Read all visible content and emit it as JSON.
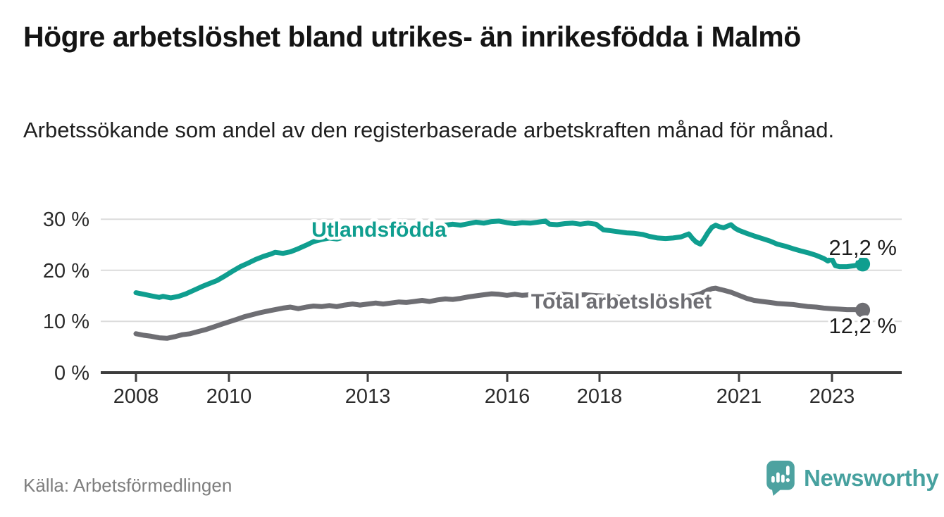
{
  "header": {
    "title": "Högre arbetslöshet bland utrikes- än inrikesfödda i Malmö",
    "subtitle": "Arbetssökande som andel av den registerbaserade arbetskraften månad för månad."
  },
  "footer": {
    "source": "Källa: Arbetsförmedlingen",
    "brand": "Newsworthy",
    "logo_icon": "bar-chart-speech-bubble-icon"
  },
  "colors": {
    "series_foreign_born": "#0f9e8f",
    "series_total": "#6e6e73",
    "brand_teal": "#47a19f",
    "axis": "#3d3d3d",
    "gridline": "#dcdcdc",
    "value_label": "#1c1c1c",
    "source_text": "#7e7e7e"
  },
  "chart_data": {
    "type": "line",
    "title": "Högre arbetslöshet bland utrikes- än inrikesfödda i Malmö",
    "subtitle": "Arbetssökande som andel av den registerbaserade arbetskraften månad för månad.",
    "xlabel": "",
    "ylabel": "",
    "grid": "horizontal",
    "legend_position": "inline-labels",
    "xlim": [
      2007.25,
      2024.2
    ],
    "ylim": [
      0,
      32
    ],
    "x_ticks": [
      2008,
      2010,
      2013,
      2016,
      2018,
      2021,
      2023
    ],
    "x_tick_labels": [
      "2008",
      "2010",
      "2013",
      "2016",
      "2018",
      "2021",
      "2023"
    ],
    "y_ticks": [
      0,
      10,
      20,
      30
    ],
    "y_tick_labels": [
      "0 %",
      "10 %",
      "20 %",
      "30 %"
    ],
    "series": [
      {
        "name": "Utlandsfödda",
        "color": "#0f9e8f",
        "end_label": "21,2 %",
        "end_value": 21.2,
        "points": [
          [
            2008.0,
            15.6
          ],
          [
            2008.17,
            15.3
          ],
          [
            2008.33,
            15.0
          ],
          [
            2008.5,
            14.7
          ],
          [
            2008.58,
            14.9
          ],
          [
            2008.75,
            14.6
          ],
          [
            2008.92,
            14.9
          ],
          [
            2009.08,
            15.4
          ],
          [
            2009.25,
            16.1
          ],
          [
            2009.42,
            16.8
          ],
          [
            2009.58,
            17.4
          ],
          [
            2009.75,
            18.0
          ],
          [
            2009.92,
            18.9
          ],
          [
            2010.08,
            19.8
          ],
          [
            2010.25,
            20.7
          ],
          [
            2010.42,
            21.4
          ],
          [
            2010.58,
            22.1
          ],
          [
            2010.75,
            22.7
          ],
          [
            2010.92,
            23.2
          ],
          [
            2011.0,
            23.5
          ],
          [
            2011.17,
            23.3
          ],
          [
            2011.33,
            23.6
          ],
          [
            2011.5,
            24.2
          ],
          [
            2011.67,
            24.9
          ],
          [
            2011.83,
            25.6
          ],
          [
            2012.0,
            26.0
          ],
          [
            2012.17,
            26.3
          ],
          [
            2012.33,
            26.1
          ],
          [
            2012.5,
            26.5
          ],
          [
            2012.67,
            26.9
          ],
          [
            2012.83,
            26.7
          ],
          [
            2013.0,
            27.0
          ],
          [
            2013.17,
            27.3
          ],
          [
            2013.33,
            27.1
          ],
          [
            2013.5,
            27.4
          ],
          [
            2013.67,
            27.6
          ],
          [
            2013.83,
            27.9
          ],
          [
            2014.0,
            28.1
          ],
          [
            2014.17,
            28.4
          ],
          [
            2014.33,
            28.2
          ],
          [
            2014.5,
            28.5
          ],
          [
            2014.67,
            28.8
          ],
          [
            2014.83,
            29.0
          ],
          [
            2015.0,
            28.8
          ],
          [
            2015.17,
            29.1
          ],
          [
            2015.33,
            29.4
          ],
          [
            2015.5,
            29.2
          ],
          [
            2015.67,
            29.5
          ],
          [
            2015.83,
            29.6
          ],
          [
            2016.0,
            29.3
          ],
          [
            2016.17,
            29.1
          ],
          [
            2016.33,
            29.3
          ],
          [
            2016.5,
            29.2
          ],
          [
            2016.67,
            29.4
          ],
          [
            2016.83,
            29.6
          ],
          [
            2016.92,
            29.0
          ],
          [
            2017.08,
            28.9
          ],
          [
            2017.25,
            29.1
          ],
          [
            2017.42,
            29.2
          ],
          [
            2017.58,
            29.0
          ],
          [
            2017.75,
            29.2
          ],
          [
            2017.92,
            29.0
          ],
          [
            2018.08,
            27.9
          ],
          [
            2018.25,
            27.7
          ],
          [
            2018.42,
            27.5
          ],
          [
            2018.58,
            27.3
          ],
          [
            2018.75,
            27.2
          ],
          [
            2018.92,
            27.0
          ],
          [
            2019.08,
            26.6
          ],
          [
            2019.25,
            26.3
          ],
          [
            2019.42,
            26.2
          ],
          [
            2019.58,
            26.3
          ],
          [
            2019.75,
            26.5
          ],
          [
            2019.92,
            27.1
          ],
          [
            2020.0,
            26.2
          ],
          [
            2020.08,
            25.5
          ],
          [
            2020.17,
            25.1
          ],
          [
            2020.25,
            26.1
          ],
          [
            2020.33,
            27.3
          ],
          [
            2020.42,
            28.4
          ],
          [
            2020.5,
            28.8
          ],
          [
            2020.58,
            28.5
          ],
          [
            2020.67,
            28.3
          ],
          [
            2020.75,
            28.6
          ],
          [
            2020.83,
            28.9
          ],
          [
            2020.92,
            28.2
          ],
          [
            2021.0,
            27.8
          ],
          [
            2021.17,
            27.2
          ],
          [
            2021.33,
            26.7
          ],
          [
            2021.5,
            26.2
          ],
          [
            2021.67,
            25.7
          ],
          [
            2021.83,
            25.1
          ],
          [
            2022.0,
            24.7
          ],
          [
            2022.17,
            24.2
          ],
          [
            2022.33,
            23.8
          ],
          [
            2022.5,
            23.4
          ],
          [
            2022.67,
            22.9
          ],
          [
            2022.83,
            22.3
          ],
          [
            2022.92,
            21.8
          ],
          [
            2023.0,
            22.3
          ],
          [
            2023.08,
            20.9
          ],
          [
            2023.17,
            20.7
          ],
          [
            2023.33,
            20.7
          ],
          [
            2023.5,
            20.9
          ],
          [
            2023.67,
            21.2
          ]
        ]
      },
      {
        "name": "Total arbetslöshet",
        "color": "#6e6e73",
        "end_label": "12,2 %",
        "end_value": 12.2,
        "points": [
          [
            2008.0,
            7.6
          ],
          [
            2008.17,
            7.3
          ],
          [
            2008.33,
            7.1
          ],
          [
            2008.5,
            6.8
          ],
          [
            2008.67,
            6.7
          ],
          [
            2008.83,
            7.0
          ],
          [
            2009.0,
            7.4
          ],
          [
            2009.17,
            7.6
          ],
          [
            2009.33,
            8.0
          ],
          [
            2009.5,
            8.4
          ],
          [
            2009.67,
            8.9
          ],
          [
            2009.83,
            9.4
          ],
          [
            2010.0,
            9.9
          ],
          [
            2010.17,
            10.4
          ],
          [
            2010.33,
            10.9
          ],
          [
            2010.5,
            11.3
          ],
          [
            2010.67,
            11.7
          ],
          [
            2010.83,
            12.0
          ],
          [
            2011.0,
            12.3
          ],
          [
            2011.17,
            12.6
          ],
          [
            2011.33,
            12.8
          ],
          [
            2011.5,
            12.5
          ],
          [
            2011.67,
            12.8
          ],
          [
            2011.83,
            13.0
          ],
          [
            2012.0,
            12.9
          ],
          [
            2012.17,
            13.1
          ],
          [
            2012.33,
            12.9
          ],
          [
            2012.5,
            13.2
          ],
          [
            2012.67,
            13.4
          ],
          [
            2012.83,
            13.2
          ],
          [
            2013.0,
            13.4
          ],
          [
            2013.17,
            13.6
          ],
          [
            2013.33,
            13.4
          ],
          [
            2013.5,
            13.6
          ],
          [
            2013.67,
            13.8
          ],
          [
            2013.83,
            13.7
          ],
          [
            2014.0,
            13.9
          ],
          [
            2014.17,
            14.1
          ],
          [
            2014.33,
            13.9
          ],
          [
            2014.5,
            14.2
          ],
          [
            2014.67,
            14.4
          ],
          [
            2014.83,
            14.3
          ],
          [
            2015.0,
            14.5
          ],
          [
            2015.17,
            14.8
          ],
          [
            2015.33,
            15.0
          ],
          [
            2015.5,
            15.2
          ],
          [
            2015.67,
            15.4
          ],
          [
            2015.83,
            15.3
          ],
          [
            2016.0,
            15.1
          ],
          [
            2016.17,
            15.3
          ],
          [
            2016.33,
            15.1
          ],
          [
            2016.5,
            15.2
          ],
          [
            2016.67,
            15.0
          ],
          [
            2016.83,
            15.1
          ],
          [
            2017.0,
            15.2
          ],
          [
            2017.17,
            15.3
          ],
          [
            2017.33,
            15.2
          ],
          [
            2017.5,
            15.1
          ],
          [
            2017.67,
            15.2
          ],
          [
            2017.83,
            15.1
          ],
          [
            2018.0,
            15.0
          ],
          [
            2018.17,
            14.9
          ],
          [
            2018.33,
            14.8
          ],
          [
            2018.5,
            14.7
          ],
          [
            2018.67,
            14.6
          ],
          [
            2018.83,
            14.7
          ],
          [
            2019.0,
            14.6
          ],
          [
            2019.17,
            14.5
          ],
          [
            2019.33,
            14.4
          ],
          [
            2019.5,
            14.5
          ],
          [
            2019.67,
            14.6
          ],
          [
            2019.83,
            14.8
          ],
          [
            2020.0,
            15.0
          ],
          [
            2020.17,
            15.4
          ],
          [
            2020.33,
            16.1
          ],
          [
            2020.42,
            16.4
          ],
          [
            2020.5,
            16.5
          ],
          [
            2020.58,
            16.3
          ],
          [
            2020.67,
            16.1
          ],
          [
            2020.83,
            15.7
          ],
          [
            2021.0,
            15.1
          ],
          [
            2021.17,
            14.5
          ],
          [
            2021.33,
            14.1
          ],
          [
            2021.5,
            13.9
          ],
          [
            2021.67,
            13.7
          ],
          [
            2021.83,
            13.5
          ],
          [
            2022.0,
            13.4
          ],
          [
            2022.17,
            13.3
          ],
          [
            2022.33,
            13.1
          ],
          [
            2022.5,
            12.9
          ],
          [
            2022.67,
            12.8
          ],
          [
            2022.83,
            12.6
          ],
          [
            2023.0,
            12.5
          ],
          [
            2023.17,
            12.4
          ],
          [
            2023.33,
            12.3
          ],
          [
            2023.5,
            12.3
          ],
          [
            2023.67,
            12.2
          ]
        ]
      }
    ]
  }
}
